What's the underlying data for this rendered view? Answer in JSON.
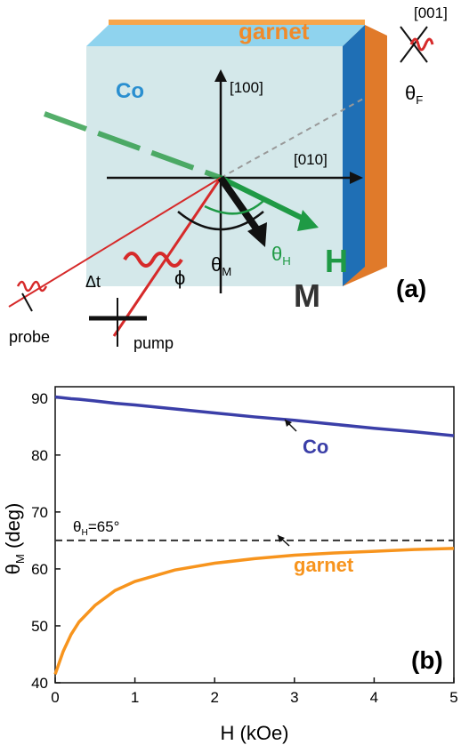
{
  "diagram": {
    "labels": {
      "garnet": "garnet",
      "co": "Co",
      "axis_100": "[100]",
      "axis_010": "[010]",
      "axis_001": "[001]",
      "theta_f": {
        "symbol": "θ",
        "subscript": "F"
      },
      "theta_m": {
        "symbol": "θ",
        "subscript": "M"
      },
      "theta_h": {
        "symbol": "θ",
        "subscript": "H"
      },
      "h": "H",
      "m": "M",
      "panel": "(a)",
      "delta_t": "Δt",
      "phi": "ϕ",
      "probe": "probe",
      "pump": "pump"
    }
  },
  "chart_data": {
    "type": "line",
    "panel": "(b)",
    "x_label": "H (kOe)",
    "y_label": {
      "symbol": "θ",
      "subscript": "M",
      "text": " (deg)"
    },
    "x": [
      0,
      0.1,
      0.2,
      0.3,
      0.5,
      0.75,
      1,
      1.5,
      2,
      2.5,
      3,
      3.5,
      4,
      4.5,
      5
    ],
    "series": [
      {
        "name": "Co",
        "color": "#3b3fa8",
        "values": [
          90.2,
          90.05,
          89.9,
          89.8,
          89.5,
          89.1,
          88.8,
          88.1,
          87.4,
          86.7,
          86.1,
          85.4,
          84.7,
          84.1,
          83.4
        ]
      },
      {
        "name": "garnet",
        "color": "#f7941d",
        "values": [
          41.5,
          45.5,
          48.5,
          50.7,
          53.6,
          56.2,
          57.8,
          59.8,
          61,
          61.8,
          62.4,
          62.8,
          63.1,
          63.4,
          63.6
        ]
      }
    ],
    "reference_line": {
      "value": 65,
      "label": {
        "symbol": "θ",
        "subscript": "H",
        "text": "=65°"
      }
    },
    "xlim": [
      0,
      5
    ],
    "ylim": [
      40,
      92
    ],
    "xticks": [
      0,
      1,
      2,
      3,
      4,
      5
    ],
    "yticks": [
      40,
      50,
      60,
      70,
      80,
      90
    ]
  }
}
